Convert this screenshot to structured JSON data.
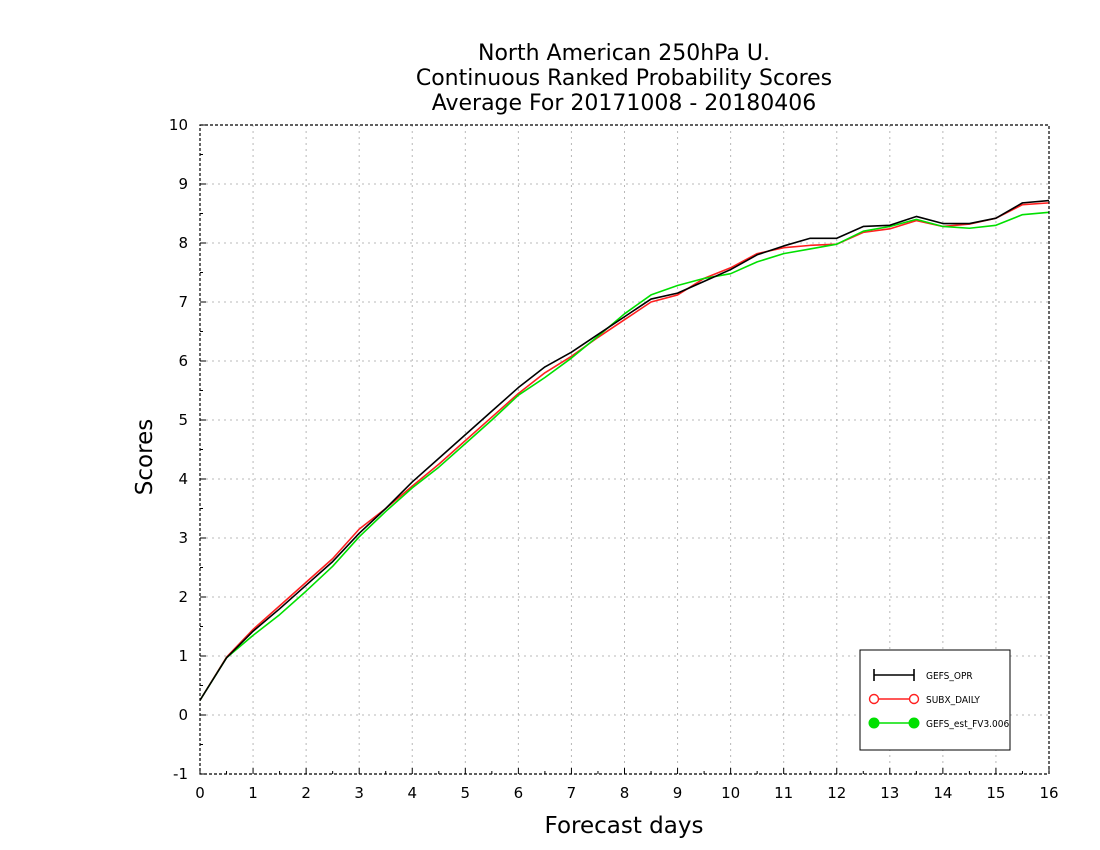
{
  "chart_data": {
    "type": "line",
    "title": [
      "North American 250hPa U.",
      "Continuous Ranked Probability Scores",
      "Average For 20171008 - 20180406"
    ],
    "xlabel": "Forecast days",
    "ylabel": "Scores",
    "xlim": [
      0,
      16
    ],
    "ylim": [
      -1,
      10
    ],
    "xticks": [
      "0",
      "1",
      "2",
      "3",
      "4",
      "5",
      "6",
      "7",
      "8",
      "9",
      "10",
      "11",
      "12",
      "13",
      "14",
      "15",
      "16"
    ],
    "yticks": [
      "-1",
      "0",
      "1",
      "2",
      "3",
      "4",
      "5",
      "6",
      "7",
      "8",
      "9",
      "10"
    ],
    "grid": true,
    "legend_position": "bottom-right",
    "x": [
      0,
      0.5,
      1,
      1.5,
      2,
      2.5,
      3,
      3.5,
      4,
      4.5,
      5,
      5.5,
      6,
      6.5,
      7,
      7.5,
      8,
      8.5,
      9,
      9.5,
      10,
      10.5,
      11,
      11.5,
      12,
      12.5,
      13,
      13.5,
      14,
      14.5,
      15,
      15.5,
      16
    ],
    "series": [
      {
        "name": "GEFS_OPR",
        "color": "#000000",
        "marker": "plus",
        "values": [
          0.25,
          0.97,
          1.42,
          1.8,
          2.2,
          2.6,
          3.08,
          3.5,
          3.95,
          4.35,
          4.75,
          5.15,
          5.55,
          5.9,
          6.15,
          6.45,
          6.75,
          7.05,
          7.15,
          7.35,
          7.55,
          7.8,
          7.95,
          8.08,
          8.08,
          8.28,
          8.3,
          8.45,
          8.33,
          8.33,
          8.42,
          8.68,
          8.72
        ]
      },
      {
        "name": "SUBX_DAILY",
        "color": "#ff2020",
        "marker": "open-circle",
        "values": [
          0.25,
          0.98,
          1.45,
          1.85,
          2.25,
          2.65,
          3.15,
          3.5,
          3.88,
          4.25,
          4.65,
          5.05,
          5.45,
          5.8,
          6.08,
          6.4,
          6.7,
          7.0,
          7.12,
          7.4,
          7.58,
          7.82,
          7.92,
          7.96,
          7.98,
          8.18,
          8.24,
          8.38,
          8.28,
          8.32,
          8.42,
          8.65,
          8.68
        ]
      },
      {
        "name": "GEFS_est_FV3.006",
        "color": "#00e000",
        "marker": "filled-circle",
        "values": [
          0.25,
          0.97,
          1.35,
          1.7,
          2.1,
          2.52,
          3.02,
          3.45,
          3.85,
          4.2,
          4.6,
          5.0,
          5.42,
          5.72,
          6.05,
          6.42,
          6.8,
          7.12,
          7.28,
          7.4,
          7.48,
          7.68,
          7.82,
          7.9,
          7.98,
          8.2,
          8.28,
          8.4,
          8.28,
          8.25,
          8.3,
          8.48,
          8.52
        ]
      }
    ]
  }
}
